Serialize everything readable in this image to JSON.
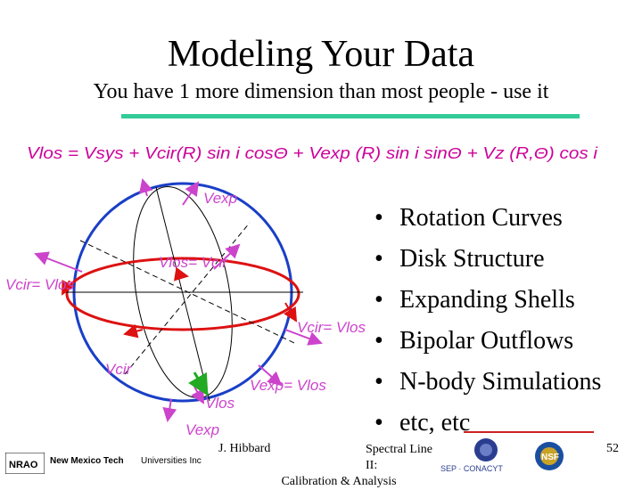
{
  "slide": {
    "title": "Modeling Your Data",
    "subtitle": "You have 1 more dimension than most people - use it",
    "equation": "Vlos = Vsys + Vcir(R) sin i cosΘ + Vexp (R) sin i sinΘ + Vz (R,Θ) cos i",
    "bullets": [
      "Rotation Curves",
      "Disk Structure",
      "Expanding Shells",
      "Bipolar Outflows",
      "N-body Simulations",
      "etc, etc"
    ],
    "bullet_char": "•",
    "diagram_labels": {
      "vexp_top": "Vexp",
      "vlos_vcir": "Vlos= Vcir",
      "vcir_vlos_left": "Vcir= Vlos",
      "vcir_vlos_right": "Vcir= Vlos",
      "vcir_bottom": "Vcir",
      "vexp_vlos": "Vexp= Vlos",
      "vlos_bottom": "Vlos",
      "vexp_bottom": "Vexp"
    },
    "footer": {
      "author": "J. Hibbard",
      "title_line1": "Spectral Line II:",
      "title_line2": "Calibration & Analysis",
      "page": "52"
    },
    "logos": {
      "nrao": "NRAO",
      "nm_tech": "New Mexico Tech",
      "universities": "Universities Inc",
      "conacyt": "SEP · CONACYT",
      "nsf": "NSF"
    },
    "colors": {
      "accent_rule": "#33cc99",
      "equation": "#cc0099",
      "circle": "#1a3fc7",
      "ellipse": "#dd1111",
      "arrows": "#cc44cc",
      "green_arrow": "#22aa22"
    }
  }
}
